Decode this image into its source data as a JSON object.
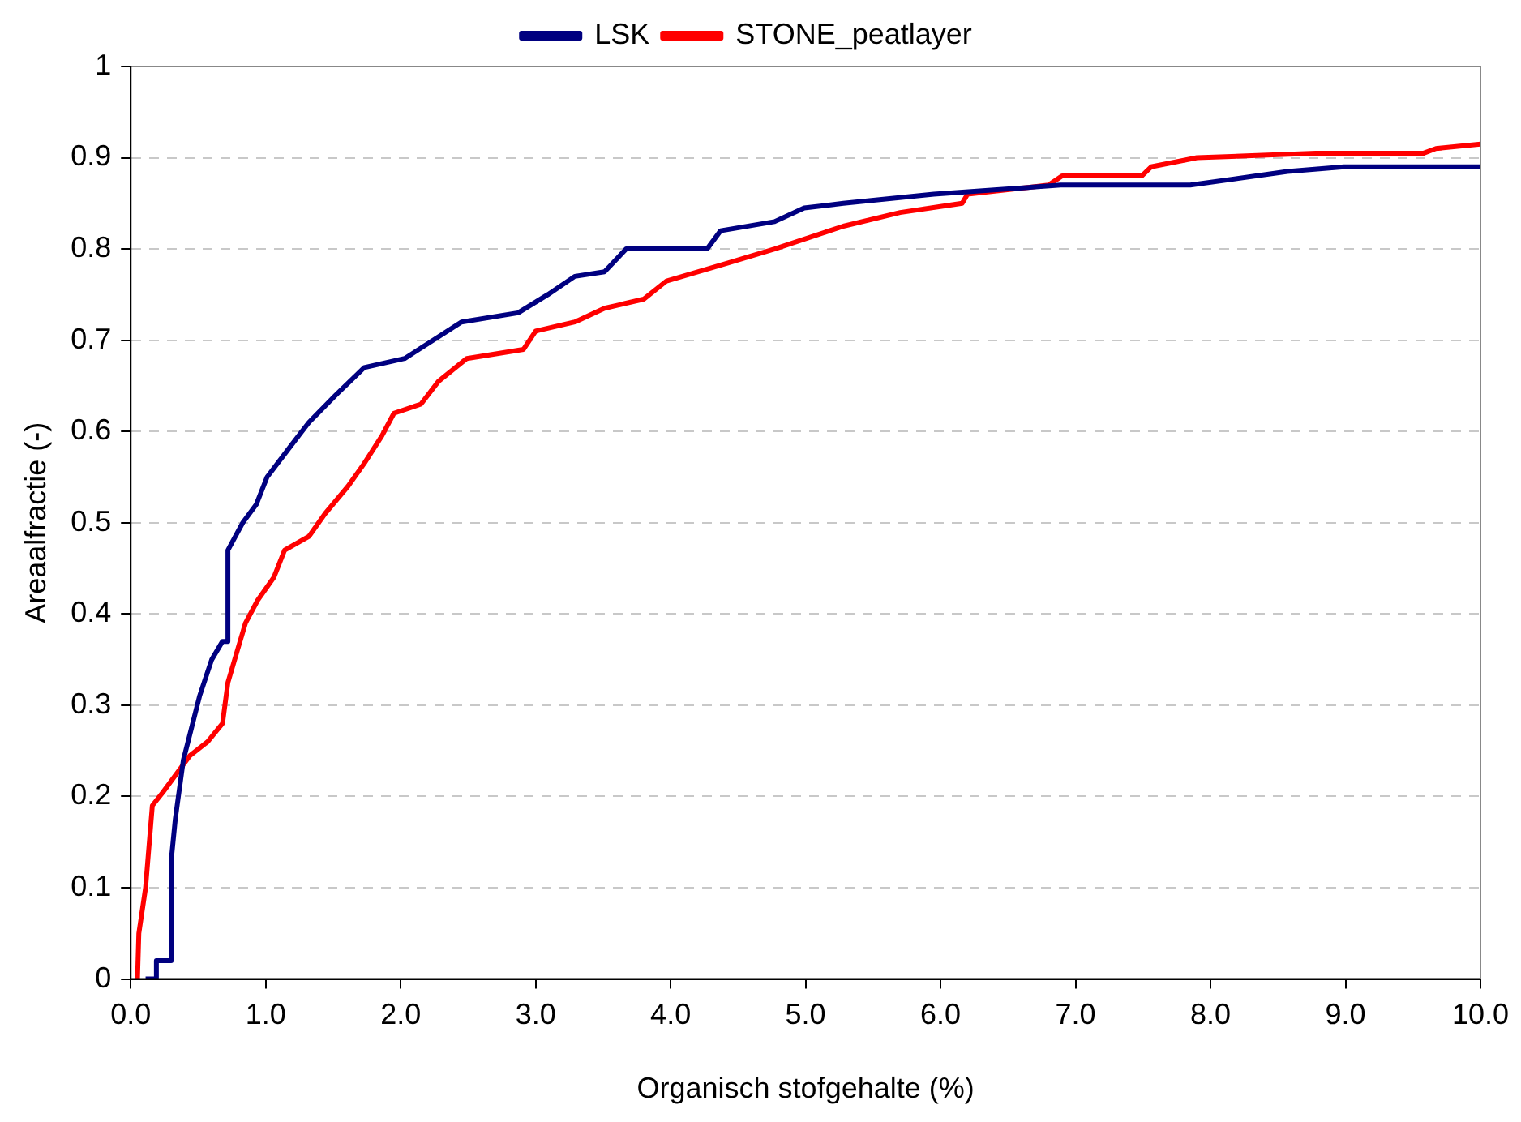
{
  "chart_data": {
    "type": "line",
    "xlabel": "Organisch stofgehalte (%)",
    "ylabel": "Areaalfractie (-)",
    "xlim": [
      0,
      10
    ],
    "ylim": [
      0,
      1
    ],
    "xticks": [
      {
        "value": 0,
        "label": "0.0"
      },
      {
        "value": 1,
        "label": "1.0"
      },
      {
        "value": 2,
        "label": "2.0"
      },
      {
        "value": 3,
        "label": "3.0"
      },
      {
        "value": 4,
        "label": "4.0"
      },
      {
        "value": 5,
        "label": "5.0"
      },
      {
        "value": 6,
        "label": "6.0"
      },
      {
        "value": 7,
        "label": "7.0"
      },
      {
        "value": 8,
        "label": "8.0"
      },
      {
        "value": 9,
        "label": "9.0"
      },
      {
        "value": 10,
        "label": "10.0"
      }
    ],
    "yticks": [
      0,
      0.1,
      0.2,
      0.3,
      0.4,
      0.5,
      0.6,
      0.7,
      0.8,
      0.9,
      1
    ],
    "grid": "y",
    "legend": "top",
    "marker": "none",
    "line_style": "solid",
    "series": [
      {
        "name": "LSK",
        "color": "#000080",
        "x": [
          0.11,
          0.19,
          0.19,
          0.3,
          0.3,
          0.33,
          0.39,
          0.51,
          0.6,
          0.68,
          0.72,
          0.72,
          0.83,
          0.93,
          1.01,
          1.19,
          1.32,
          1.52,
          1.73,
          2.03,
          2.45,
          2.87,
          3.09,
          3.29,
          3.51,
          3.67,
          4.27,
          4.37,
          4.77,
          4.99,
          5.28,
          5.95,
          6.89,
          7.85,
          8.57,
          8.99,
          10
        ],
        "values": [
          0,
          0,
          0.02,
          0.02,
          0.13,
          0.175,
          0.24,
          0.31,
          0.35,
          0.37,
          0.37,
          0.47,
          0.5,
          0.52,
          0.55,
          0.585,
          0.61,
          0.64,
          0.67,
          0.68,
          0.72,
          0.73,
          0.75,
          0.77,
          0.775,
          0.8,
          0.8,
          0.82,
          0.83,
          0.845,
          0.85,
          0.86,
          0.87,
          0.87,
          0.885,
          0.89,
          0.89
        ]
      },
      {
        "name": "STONE_peatlayer",
        "color": "#ff0000",
        "x": [
          0.05,
          0.06,
          0.11,
          0.16,
          0.24,
          0.34,
          0.44,
          0.57,
          0.68,
          0.72,
          0.78,
          0.85,
          0.94,
          1.06,
          1.14,
          1.32,
          1.44,
          1.61,
          1.73,
          1.86,
          1.95,
          2.15,
          2.28,
          2.49,
          2.91,
          3.0,
          3.29,
          3.51,
          3.8,
          3.97,
          4.43,
          4.77,
          5.28,
          5.7,
          6.16,
          6.2,
          6.8,
          6.9,
          7.49,
          7.56,
          7.9,
          8.78,
          9.58,
          9.67,
          10
        ],
        "values": [
          0,
          0.05,
          0.1,
          0.19,
          0.205,
          0.225,
          0.245,
          0.26,
          0.28,
          0.325,
          0.355,
          0.39,
          0.415,
          0.44,
          0.47,
          0.485,
          0.51,
          0.54,
          0.565,
          0.595,
          0.62,
          0.63,
          0.655,
          0.68,
          0.69,
          0.71,
          0.72,
          0.735,
          0.745,
          0.765,
          0.785,
          0.8,
          0.825,
          0.84,
          0.85,
          0.86,
          0.87,
          0.88,
          0.88,
          0.89,
          0.9,
          0.905,
          0.905,
          0.91,
          0.915
        ]
      }
    ]
  }
}
